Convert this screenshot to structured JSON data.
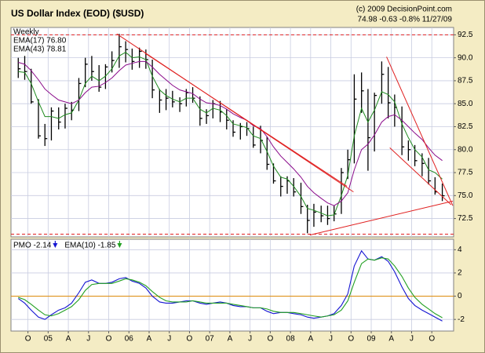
{
  "chart_data": [
    {
      "type": "ohlc",
      "title": "US Dollar Index (EOD) ($USD)",
      "source": "(c) 2009 DecisionPoint.com",
      "quote": "74.98  -0.63  -0.8%  11/27/09",
      "subtitle": "Weekly",
      "x": [
        2004.63,
        2004.71,
        2004.79,
        2004.88,
        2004.96,
        2005.04,
        2005.13,
        2005.21,
        2005.29,
        2005.38,
        2005.46,
        2005.54,
        2005.63,
        2005.71,
        2005.79,
        2005.88,
        2005.96,
        2006.04,
        2006.13,
        2006.21,
        2006.29,
        2006.38,
        2006.46,
        2006.54,
        2006.63,
        2006.71,
        2006.79,
        2006.88,
        2006.96,
        2007.04,
        2007.13,
        2007.21,
        2007.29,
        2007.38,
        2007.46,
        2007.54,
        2007.63,
        2007.71,
        2007.79,
        2007.88,
        2007.96,
        2008.04,
        2008.13,
        2008.21,
        2008.29,
        2008.38,
        2008.46,
        2008.54,
        2008.63,
        2008.71,
        2008.79,
        2008.88,
        2008.96,
        2009.04,
        2009.13,
        2009.21,
        2009.29,
        2009.38,
        2009.46,
        2009.54,
        2009.63,
        2009.71,
        2009.79,
        2009.88
      ],
      "high": [
        90.0,
        90.2,
        88.8,
        85.5,
        82.8,
        84.6,
        84.6,
        85.0,
        85.2,
        87.8,
        90.0,
        90.2,
        89.2,
        89.3,
        90.7,
        92.6,
        91.8,
        91.0,
        91.1,
        90.9,
        89.8,
        86.6,
        86.6,
        86.4,
        85.7,
        86.6,
        86.8,
        85.8,
        84.4,
        85.4,
        85.3,
        84.4,
        83.2,
        82.9,
        83.0,
        82.5,
        82.6,
        81.4,
        78.5,
        77.1,
        77.1,
        76.9,
        76.4,
        74.0,
        74.1,
        73.9,
        73.9,
        73.9,
        78.0,
        80.0,
        88.2,
        88.4,
        86.6,
        86.2,
        89.6,
        89.0,
        86.0,
        84.7,
        81.0,
        80.5,
        79.6,
        79.1,
        77.0,
        76.3
      ],
      "low": [
        87.8,
        87.6,
        85.0,
        81.2,
        80.4,
        81.0,
        82.2,
        82.3,
        83.2,
        84.2,
        86.8,
        87.5,
        86.3,
        86.6,
        88.4,
        88.9,
        89.5,
        88.7,
        88.9,
        88.8,
        85.6,
        84.0,
        84.3,
        84.6,
        84.1,
        84.7,
        85.1,
        82.6,
        82.8,
        83.4,
        83.0,
        82.2,
        81.4,
        81.1,
        81.5,
        80.2,
        79.6,
        77.8,
        76.3,
        74.9,
        75.2,
        74.9,
        73.0,
        70.9,
        71.6,
        72.1,
        71.8,
        72.2,
        73.0,
        76.8,
        78.5,
        84.0,
        77.7,
        79.8,
        85.0,
        83.4,
        82.5,
        79.4,
        78.8,
        78.2,
        77.1,
        76.2,
        75.1,
        74.4
      ],
      "close": [
        88.8,
        88.5,
        85.2,
        81.5,
        81.2,
        84.2,
        83.0,
        84.5,
        84.3,
        87.2,
        89.3,
        88.5,
        86.8,
        89.0,
        89.7,
        91.2,
        90.9,
        89.6,
        90.7,
        89.8,
        86.5,
        85.4,
        85.6,
        85.2,
        85.0,
        86.2,
        85.6,
        83.4,
        83.7,
        85.0,
        84.1,
        83.2,
        81.9,
        82.5,
        82.3,
        80.5,
        81.0,
        78.4,
        76.6,
        76.0,
        76.6,
        75.4,
        73.8,
        72.3,
        73.2,
        72.8,
        72.5,
        73.0,
        77.5,
        78.9,
        85.5,
        86.4,
        81.3,
        85.9,
        88.2,
        85.1,
        84.6,
        80.3,
        80.0,
        78.8,
        78.5,
        76.6,
        75.4,
        74.98
      ],
      "color": "#000000",
      "series": [
        {
          "name": "EMA(17) 76.80",
          "color": "#1e8a1e",
          "values": [
            88.5,
            88.4,
            87.2,
            85.2,
            83.6,
            83.6,
            83.4,
            83.8,
            84.0,
            85.4,
            87.2,
            88.0,
            87.5,
            88.0,
            88.8,
            90.2,
            90.6,
            90.0,
            90.1,
            89.8,
            88.0,
            86.5,
            85.9,
            85.5,
            85.2,
            85.6,
            85.6,
            84.4,
            84.0,
            84.5,
            84.3,
            83.7,
            82.8,
            82.6,
            82.4,
            81.5,
            81.2,
            79.8,
            78.2,
            77.0,
            76.8,
            76.0,
            74.9,
            73.6,
            73.4,
            73.1,
            72.8,
            72.9,
            75.0,
            77.2,
            81.5,
            84.5,
            83.0,
            84.3,
            86.3,
            86.0,
            85.2,
            82.8,
            81.3,
            80.0,
            79.2,
            77.8,
            77.5,
            76.8
          ]
        },
        {
          "name": "EMA(43) 78.81",
          "color": "#8a0a8a",
          "values": [
            89.5,
            89.3,
            88.6,
            87.6,
            86.6,
            86.0,
            85.4,
            85.2,
            85.0,
            85.4,
            86.2,
            86.8,
            86.9,
            87.3,
            87.8,
            88.6,
            89.2,
            89.4,
            89.6,
            89.6,
            89.0,
            88.2,
            87.6,
            87.0,
            86.5,
            86.3,
            86.1,
            85.5,
            85.1,
            85.0,
            84.8,
            84.4,
            83.9,
            83.5,
            83.2,
            82.6,
            82.3,
            81.4,
            80.3,
            79.3,
            78.6,
            77.9,
            77.0,
            76.0,
            75.3,
            74.7,
            74.2,
            73.9,
            74.4,
            75.3,
            77.8,
            80.0,
            80.6,
            81.6,
            83.0,
            83.6,
            83.8,
            83.2,
            82.5,
            81.8,
            81.1,
            80.2,
            79.4,
            78.81
          ]
        }
      ],
      "xlim": [
        2004.54,
        2010.02
      ],
      "xticks": [
        {
          "value": 2004.75,
          "label": "O"
        },
        {
          "value": 2005,
          "label": "05"
        },
        {
          "value": 2005.25,
          "label": "A"
        },
        {
          "value": 2005.5,
          "label": "J"
        },
        {
          "value": 2005.75,
          "label": "O"
        },
        {
          "value": 2006,
          "label": "06"
        },
        {
          "value": 2006.25,
          "label": "A"
        },
        {
          "value": 2006.5,
          "label": "J"
        },
        {
          "value": 2006.75,
          "label": "O"
        },
        {
          "value": 2007,
          "label": "07"
        },
        {
          "value": 2007.25,
          "label": "A"
        },
        {
          "value": 2007.5,
          "label": "J"
        },
        {
          "value": 2007.75,
          "label": "O"
        },
        {
          "value": 2008,
          "label": "08"
        },
        {
          "value": 2008.25,
          "label": "A"
        },
        {
          "value": 2008.5,
          "label": "J"
        },
        {
          "value": 2008.75,
          "label": "O"
        },
        {
          "value": 2009,
          "label": "09"
        },
        {
          "value": 2009.25,
          "label": "A"
        },
        {
          "value": 2009.5,
          "label": "J"
        },
        {
          "value": 2009.75,
          "label": "O"
        }
      ],
      "ylim": [
        70.5,
        93.3
      ],
      "yticks": [
        72.5,
        {
          "value": 75,
          "label": "75.0"
        },
        77.5,
        {
          "value": 80,
          "label": "80.0"
        },
        82.5,
        {
          "value": 85,
          "label": "85.0"
        },
        87.5,
        {
          "value": 90,
          "label": "90.0"
        },
        92.5
      ],
      "grid": true,
      "line_color": "#e02020",
      "hlines": [
        92.5,
        70.8
      ],
      "trendlines": [
        {
          "x": [
            2005.85,
            2008.78
          ],
          "y": [
            92.6,
            75.4
          ]
        },
        {
          "x": [
            2006.2,
            2008.7
          ],
          "y": [
            90.5,
            76.0
          ]
        },
        {
          "x": [
            2008.24,
            2010.01
          ],
          "y": [
            70.7,
            74.4
          ]
        },
        {
          "x": [
            2009.19,
            2010.01
          ],
          "y": [
            90.1,
            73.9
          ]
        },
        {
          "x": [
            2009.23,
            2009.99
          ],
          "y": [
            80.2,
            74.0
          ]
        }
      ]
    },
    {
      "type": "line",
      "series": [
        {
          "name": "PMO -2.14",
          "color": "#1414d2",
          "values": [
            -0.2,
            -0.6,
            -1.2,
            -1.8,
            -2.0,
            -1.6,
            -1.2,
            -1.0,
            -0.6,
            0.3,
            1.2,
            1.4,
            1.1,
            1.1,
            1.2,
            1.5,
            1.6,
            1.3,
            1.1,
            0.7,
            0.0,
            -0.5,
            -0.6,
            -0.6,
            -0.5,
            -0.4,
            -0.4,
            -0.6,
            -0.7,
            -0.6,
            -0.5,
            -0.6,
            -0.8,
            -0.9,
            -0.9,
            -1.0,
            -1.0,
            -1.3,
            -1.5,
            -1.4,
            -1.4,
            -1.5,
            -1.6,
            -1.8,
            -1.9,
            -1.8,
            -1.7,
            -1.5,
            -0.8,
            0.2,
            2.6,
            3.9,
            3.2,
            3.1,
            3.4,
            3.0,
            2.1,
            0.8,
            -0.2,
            -0.8,
            -1.2,
            -1.5,
            -1.8,
            -2.14
          ]
        },
        {
          "name": "EMA(10) -1.85",
          "color": "#22a022",
          "values": [
            -0.1,
            -0.3,
            -0.7,
            -1.2,
            -1.6,
            -1.7,
            -1.5,
            -1.2,
            -0.9,
            -0.3,
            0.5,
            1.0,
            1.1,
            1.1,
            1.1,
            1.3,
            1.5,
            1.4,
            1.2,
            0.9,
            0.4,
            -0.1,
            -0.4,
            -0.5,
            -0.5,
            -0.5,
            -0.4,
            -0.5,
            -0.6,
            -0.6,
            -0.6,
            -0.6,
            -0.7,
            -0.8,
            -0.9,
            -1.0,
            -1.0,
            -1.1,
            -1.3,
            -1.4,
            -1.4,
            -1.4,
            -1.5,
            -1.6,
            -1.7,
            -1.8,
            -1.7,
            -1.6,
            -1.2,
            -0.4,
            1.2,
            2.8,
            3.2,
            3.1,
            3.3,
            3.2,
            2.6,
            1.7,
            0.7,
            -0.1,
            -0.7,
            -1.1,
            -1.5,
            -1.85
          ]
        }
      ],
      "ylim": [
        -3.0,
        4.9
      ],
      "yticks": [
        -2,
        0,
        2,
        4
      ],
      "grid": true,
      "hlines": [
        0
      ],
      "line_color": "#e08a00"
    }
  ]
}
